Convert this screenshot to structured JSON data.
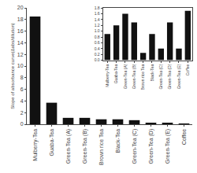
{
  "chart_data": [
    {
      "type": "bar",
      "categories": [
        "Mulberry-Tea",
        "Guaba-Tea",
        "Green-Tea (A)",
        "Green-Tea (B)",
        "Brown rice Tea",
        "Black-Tea",
        "Green-Tea (C)",
        "Green-Tea (D)",
        "Green-Tea (E)",
        "Coffee"
      ],
      "values": [
        18.5,
        3.7,
        1.1,
        1.1,
        0.85,
        0.85,
        0.7,
        0.25,
        0.25,
        0.05
      ],
      "color": "#111111",
      "ylabel": "Slope of absorbance curve(Δabs/dilution)",
      "ylim": [
        0,
        20
      ],
      "yticks": [
        0,
        2,
        4,
        6,
        8,
        10,
        12,
        14,
        16,
        18,
        20
      ],
      "grid": false
    },
    {
      "type": "bar",
      "categories": [
        "Mulberry-Tea",
        "Guaba-Tea",
        "Green-Tea (A)",
        "Green-Tea (B)",
        "Brown rice Tea",
        "Black-Tea",
        "Green-Tea (C)",
        "Green-Tea (D)",
        "Green-Tea (E)",
        "Coffee"
      ],
      "values": [
        0.9,
        1.2,
        1.6,
        1.3,
        0.25,
        0.9,
        0.4,
        1.3,
        0.4,
        1.7
      ],
      "color": "#111111",
      "ylim": [
        0,
        1.8
      ],
      "yticks": [
        {
          "value": 0.0,
          "label": "0.0"
        },
        0.2,
        0.4,
        0.6,
        0.8,
        {
          "value": 1.0,
          "label": "1.0"
        },
        1.2,
        1.4,
        1.6,
        1.8
      ],
      "grid": false
    }
  ]
}
